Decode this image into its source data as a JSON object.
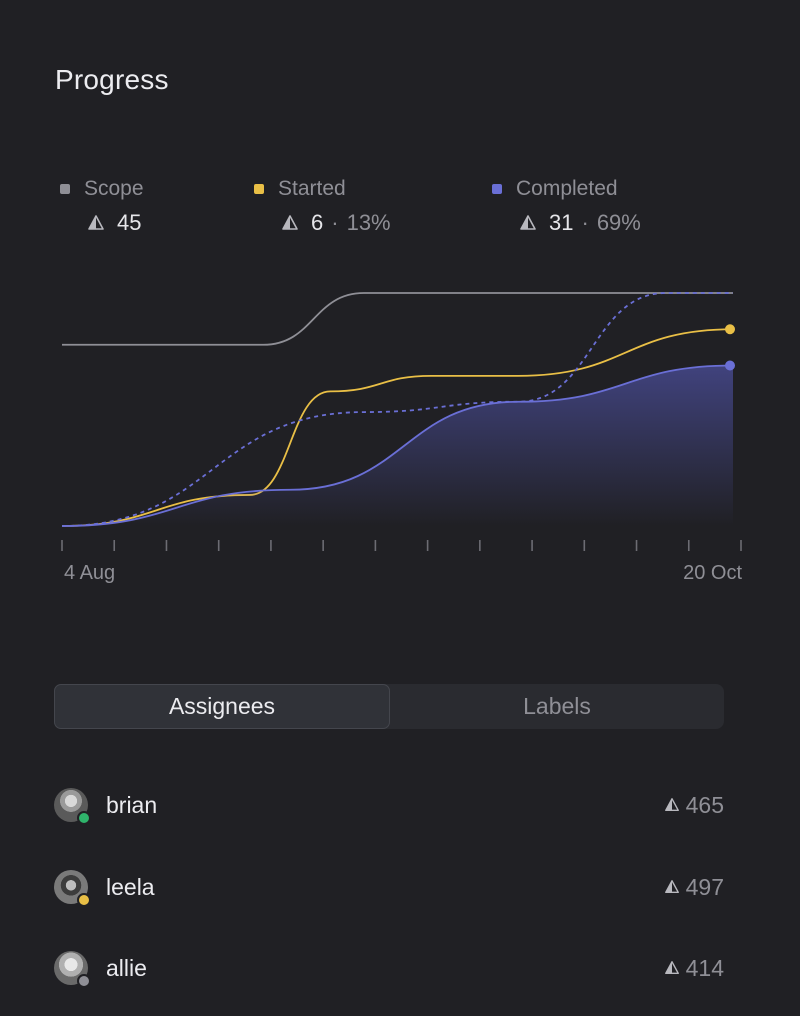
{
  "header": {
    "title": "Progress"
  },
  "legend": [
    {
      "label": "Scope",
      "count": "45",
      "separator": "",
      "percent": "",
      "color": "#8f8f96"
    },
    {
      "label": "Started",
      "count": "6",
      "separator": "·",
      "percent": "13%",
      "color": "#e9bf46"
    },
    {
      "label": "Completed",
      "count": "31",
      "separator": "·",
      "percent": "69%",
      "color": "#6a6fd6"
    }
  ],
  "chart_data": {
    "type": "area",
    "x_labels": [
      "4 Aug",
      "20 Oct"
    ],
    "x_tick_count": 14,
    "ylim": [
      0,
      45
    ],
    "grid": false,
    "series": [
      {
        "name": "Scope",
        "style": "solid",
        "color": "#8f8f96",
        "x": [
          0,
          0.3,
          0.45,
          1
        ],
        "values": [
          35,
          35,
          45,
          45
        ]
      },
      {
        "name": "Started",
        "style": "solid",
        "color": "#e9bf46",
        "x": [
          0,
          0.28,
          0.4,
          0.55,
          0.68,
          1
        ],
        "values": [
          0,
          6,
          26,
          29,
          29,
          38
        ],
        "end_marker": true
      },
      {
        "name": "Completed",
        "style": "solid-fill",
        "color": "#6a6fd6",
        "x": [
          0,
          0.34,
          0.68,
          1
        ],
        "values": [
          0,
          7,
          24,
          31
        ],
        "end_marker": true
      },
      {
        "name": "",
        "style": "dashed",
        "color": "#6a6fd6",
        "x": [
          0,
          0.45,
          0.68,
          0.9,
          1
        ],
        "values": [
          0,
          22,
          24,
          45,
          45
        ]
      }
    ]
  },
  "tabs": {
    "assignees_label": "Assignees",
    "labels_label": "Labels",
    "active": "assignees"
  },
  "assignees": [
    {
      "name": "brian",
      "estimate": "465",
      "status_color": "#2fb36b"
    },
    {
      "name": "leela",
      "estimate": "497",
      "status_color": "#e9bf46"
    },
    {
      "name": "allie",
      "estimate": "414",
      "status_color": "#8f8f96"
    }
  ]
}
